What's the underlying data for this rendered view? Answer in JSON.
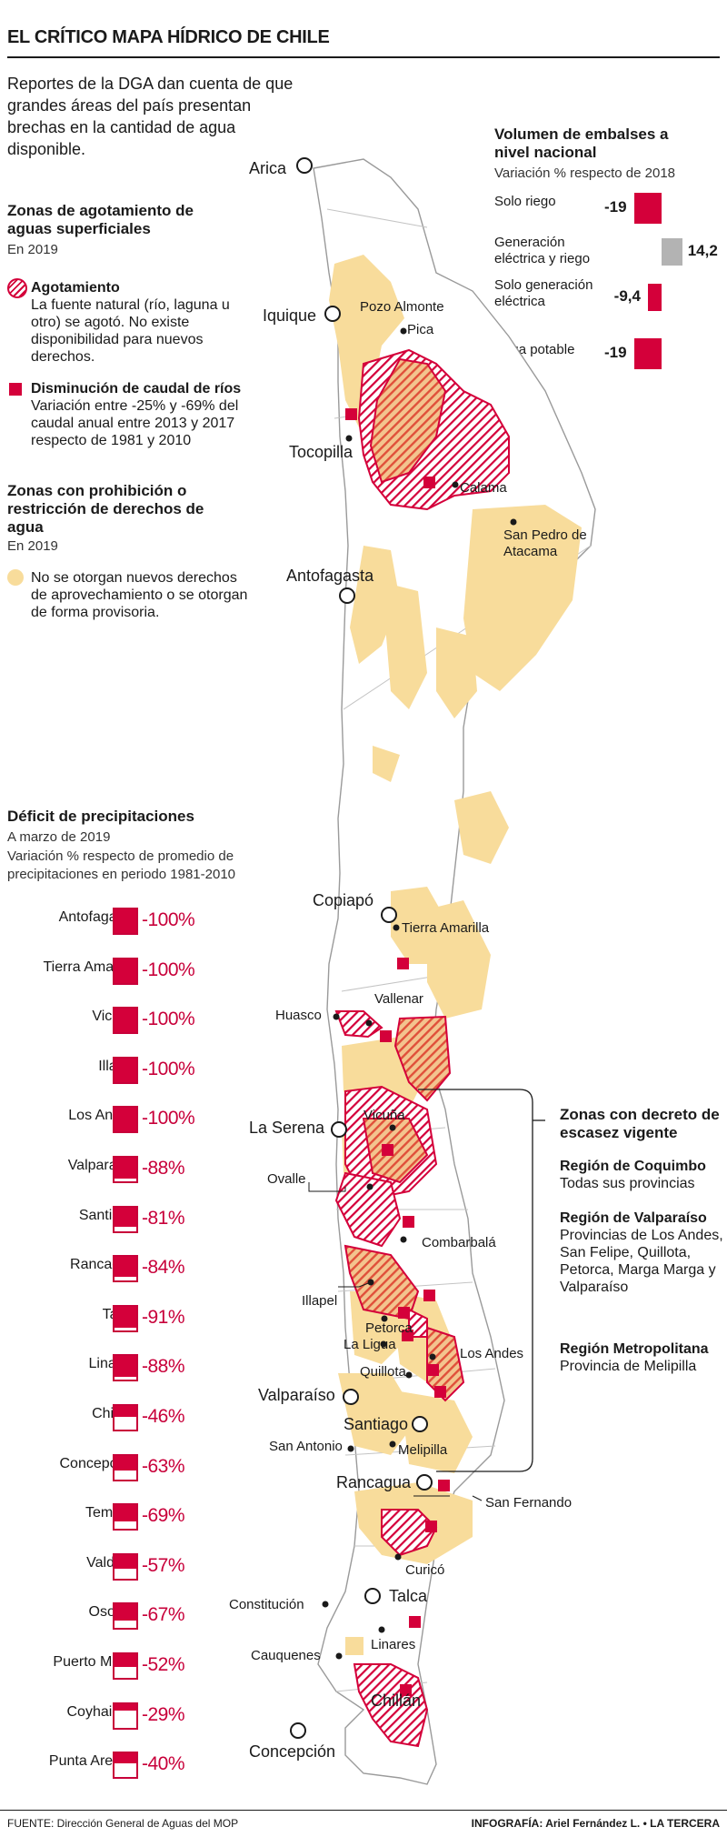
{
  "title": "EL CRÍTICO MAPA HÍDRICO DE CHILE",
  "intro": "Reportes de la DGA dan cuenta de que grandes áreas del país presentan brechas en la cantidad de agua disponible.",
  "legend": {
    "depletion_heading": "Zonas de agotamiento de aguas superficiales",
    "depletion_year": "En 2019",
    "depletion_label": "Agotamiento",
    "depletion_desc": "La fuente natural (río, laguna u otro) se agotó. No existe disponibilidad para nuevos derechos.",
    "flow_label": "Disminución de caudal de ríos",
    "flow_desc": "Variación entre -25% y -69% del caudal anual entre 2013 y 2017 respecto de 1981 y 2010",
    "prohibition_heading": "Zonas con prohibición o restricción de derechos de agua",
    "prohibition_year": "En 2019",
    "prohibition_desc": "No se otorgan nuevos derechos de aprovechamiento o se otorgan de forma provisoria.",
    "colors": {
      "red": "#d4003a",
      "tan": "#f8dc9b",
      "gray": "#b3b3b3"
    }
  },
  "reservoirs": {
    "title": "Volumen de embalses a nivel nacional",
    "subtitle": "Variación % respecto de 2018",
    "rows": [
      {
        "label": "Solo riego",
        "value": "-19",
        "num": -19
      },
      {
        "label": "Generación eléctrica y riego",
        "value": "14,2",
        "num": 14.2
      },
      {
        "label": "Solo generación eléctrica",
        "value": "-9,4",
        "num": -9.4
      },
      {
        "label": "Agua potable",
        "value": "-19",
        "num": -19
      }
    ]
  },
  "chart_data": {
    "type": "bar",
    "title": "Déficit de precipitaciones",
    "subtitle": "A marzo de 2019",
    "description": "Variación % respecto de promedio de precipitaciones en periodo 1981-2010",
    "categories": [
      "Antofagasta",
      "Tierra Amarilla",
      "Vicuña",
      "Illapel",
      "Los Andes",
      "Valparaíso",
      "Santiago",
      "Rancagua",
      "Talca",
      "Linares",
      "Chillán",
      "Concepción",
      "Temuco",
      "Valdivia",
      "Osorno",
      "Puerto Montt",
      "Coyhaique",
      "Punta Arenas"
    ],
    "values": [
      -100,
      -100,
      -100,
      -100,
      -100,
      -88,
      -81,
      -84,
      -91,
      -88,
      -46,
      -63,
      -69,
      -57,
      -67,
      -52,
      -29,
      -40
    ],
    "labels": [
      "-100%",
      "-100%",
      "-100%",
      "-100%",
      "-100%",
      "-88%",
      "-81%",
      "-84%",
      "-91%",
      "-88%",
      "-46%",
      "-63%",
      "-69%",
      "-57%",
      "-67%",
      "-52%",
      "-29%",
      "-40%"
    ],
    "ylim": [
      -100,
      0
    ]
  },
  "map": {
    "cities": {
      "arica": "Arica",
      "iquique": "Iquique",
      "pozo_almonte": "Pozo Almonte",
      "pica": "Pica",
      "tocopilla": "Tocopilla",
      "calama": "Calama",
      "san_pedro": "San Pedro de Atacama",
      "antofagasta": "Antofagasta",
      "copiapo": "Copiapó",
      "tierra_amarilla": "Tierra Amarilla",
      "vallenar": "Vallenar",
      "huasco": "Huasco",
      "la_serena": "La Serena",
      "vicuna": "Vicuña",
      "ovalle": "Ovalle",
      "combarbala": "Combarbalá",
      "illapel": "Illapel",
      "petorca": "Petorca",
      "la_ligua": "La Ligua",
      "los_andes": "Los Andes",
      "quillota": "Quillota",
      "valparaiso": "Valparaíso",
      "santiago": "Santiago",
      "san_antonio": "San Antonio",
      "melipilla": "Melipilla",
      "rancagua": "Rancagua",
      "san_fernando": "San Fernando",
      "curico": "Curicó",
      "talca": "Talca",
      "constitucion": "Constitución",
      "linares": "Linares",
      "cauquenes": "Cauquenes",
      "chillan": "Chillán",
      "concepcion": "Concepción"
    }
  },
  "scarcity": {
    "title": "Zonas con decreto de escasez vigente",
    "r1_name": "Región de Coquimbo",
    "r1_desc": "Todas sus provincias",
    "r2_name": "Región de Valparaíso",
    "r2_desc": "Provincias de Los Andes, San Felipe, Quillota, Petorca, Marga Marga y Valparaíso",
    "r3_name": "Región Metropolitana",
    "r3_desc": "Provincia de Melipilla"
  },
  "footer": {
    "source": "FUENTE: Dirección General de Aguas del MOP",
    "credit": "INFOGRAFÍA: Ariel Fernández L. • LA TERCERA"
  }
}
